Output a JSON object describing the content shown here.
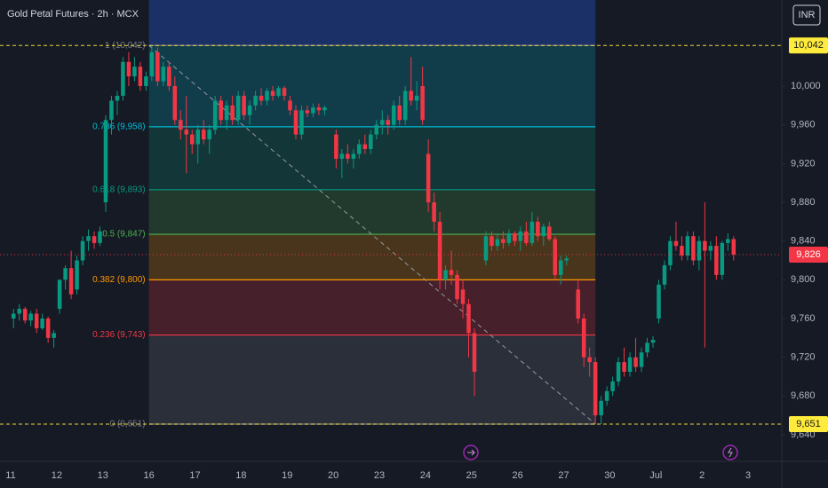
{
  "chart_data": {
    "type": "candlestick",
    "title": "Gold Petal Futures · 2h · MCX",
    "currency_button": "INR",
    "categories": [
      "11",
      "12",
      "13",
      "16",
      "17",
      "18",
      "19",
      "20",
      "23",
      "24",
      "25",
      "26",
      "27",
      "30",
      "Jul",
      "2",
      "3"
    ],
    "up_color": "#089981",
    "down_color": "#f23645",
    "ohlc": [
      [
        [
          9760,
          9770,
          9750,
          9765
        ],
        [
          9765,
          9775,
          9758,
          9770
        ],
        [
          9770,
          9772,
          9755,
          9758
        ],
        [
          9758,
          9768,
          9752,
          9765
        ],
        [
          9765,
          9770,
          9745,
          9750
        ],
        [
          9750,
          9765,
          9748,
          9760
        ],
        [
          9760,
          9762,
          9735,
          9740
        ],
        [
          9740,
          9748,
          9730,
          9745
        ]
      ],
      [
        [
          9770,
          9800,
          9765,
          9800
        ],
        [
          9800,
          9815,
          9790,
          9812
        ],
        [
          9812,
          9830,
          9780,
          9785
        ],
        [
          9790,
          9825,
          9785,
          9820
        ],
        [
          9820,
          9845,
          9815,
          9840
        ],
        [
          9840,
          9852,
          9830,
          9845
        ],
        [
          9845,
          9850,
          9832,
          9838
        ],
        [
          9838,
          9855,
          9835,
          9850
        ]
      ],
      [
        [
          9880,
          9970,
          9870,
          9965
        ],
        [
          9965,
          9990,
          9950,
          9985
        ],
        [
          9985,
          9995,
          9970,
          9990
        ],
        [
          9990,
          10030,
          9985,
          10025
        ],
        [
          10025,
          10035,
          10000,
          10010
        ],
        [
          10010,
          10030,
          10005,
          10020
        ],
        [
          10020,
          10025,
          9995,
          10000
        ],
        [
          10000,
          10015,
          9995,
          10010
        ]
      ],
      [
        [
          10010,
          10042,
          10005,
          10035
        ],
        [
          10035,
          10040,
          10000,
          10005
        ],
        [
          10005,
          10025,
          10000,
          10020
        ],
        [
          10020,
          10025,
          9995,
          10000
        ],
        [
          10000,
          10010,
          9960,
          9965
        ],
        [
          9965,
          9975,
          9945,
          9955
        ],
        [
          9955,
          9990,
          9910,
          9950
        ],
        [
          9950,
          9955,
          9930,
          9940
        ]
      ],
      [
        [
          9940,
          9960,
          9920,
          9955
        ],
        [
          9955,
          9965,
          9940,
          9945
        ],
        [
          9945,
          9960,
          9930,
          9955
        ],
        [
          9955,
          9990,
          9950,
          9985
        ],
        [
          9985,
          9990,
          9960,
          9965
        ],
        [
          9965,
          9985,
          9955,
          9980
        ],
        [
          9980,
          9990,
          9960,
          9965
        ],
        [
          9965,
          9995,
          9960,
          9990
        ]
      ],
      [
        [
          9990,
          9995,
          9965,
          9970
        ],
        [
          9970,
          9985,
          9960,
          9980
        ],
        [
          9980,
          9995,
          9975,
          9990
        ],
        [
          9990,
          9998,
          9980,
          9985
        ],
        [
          9985,
          9998,
          9980,
          9995
        ],
        [
          9995,
          10000,
          9985,
          9990
        ],
        [
          9990,
          10000,
          9988,
          9998
        ],
        [
          9998,
          10000,
          9985,
          9990
        ]
      ],
      [
        [
          9985,
          9990,
          9970,
          9975
        ],
        [
          9975,
          9980,
          9945,
          9950
        ],
        [
          9950,
          9980,
          9945,
          9975
        ],
        [
          9975,
          9980,
          9968,
          9972
        ],
        [
          9972,
          9982,
          9968,
          9978
        ],
        [
          9978,
          9982,
          9970,
          9975
        ],
        [
          9975,
          9980,
          9970,
          9978
        ],
        null
      ],
      [
        [
          9950,
          9955,
          9915,
          9925
        ],
        [
          9925,
          9935,
          9905,
          9930
        ],
        [
          9930,
          9940,
          9920,
          9925
        ],
        [
          9925,
          9935,
          9915,
          9930
        ],
        [
          9930,
          9945,
          9925,
          9940
        ],
        [
          9940,
          9950,
          9930,
          9935
        ],
        [
          9935,
          9955,
          9930,
          9950
        ],
        [
          9950,
          9965,
          9945,
          9960
        ]
      ],
      [
        [
          9960,
          9975,
          9950,
          9965
        ],
        [
          9965,
          9970,
          9950,
          9960
        ],
        [
          9960,
          9985,
          9955,
          9980
        ],
        [
          9980,
          9990,
          9960,
          9965
        ],
        [
          9965,
          10000,
          9960,
          9995
        ],
        [
          9995,
          10030,
          9980,
          9985
        ],
        [
          9985,
          10005,
          9975,
          9990
        ],
        [
          10000,
          10020,
          9960,
          9965
        ]
      ],
      [
        [
          9930,
          9945,
          9870,
          9880
        ],
        [
          9880,
          9890,
          9850,
          9860
        ],
        [
          9860,
          9870,
          9790,
          9800
        ],
        [
          9800,
          9815,
          9790,
          9810
        ],
        [
          9810,
          9830,
          9795,
          9805
        ],
        [
          9805,
          9810,
          9775,
          9780
        ],
        [
          9790,
          9800,
          9760,
          9775
        ],
        [
          9775,
          9780,
          9720,
          9745
        ]
      ],
      [
        [
          9745,
          9750,
          9680,
          9705
        ],
        null,
        [
          9820,
          9850,
          9815,
          9845
        ],
        [
          9845,
          9850,
          9830,
          9835
        ],
        [
          9835,
          9848,
          9830,
          9842
        ],
        [
          9842,
          9850,
          9832,
          9838
        ],
        [
          9838,
          9852,
          9835,
          9848
        ],
        [
          9848,
          9850,
          9835,
          9840
        ]
      ],
      [
        [
          9840,
          9855,
          9830,
          9850
        ],
        [
          9850,
          9860,
          9835,
          9838
        ],
        [
          9838,
          9870,
          9835,
          9860
        ],
        [
          9860,
          9865,
          9840,
          9845
        ],
        [
          9845,
          9858,
          9835,
          9855
        ],
        [
          9855,
          9860,
          9840,
          9842
        ],
        [
          9842,
          9845,
          9800,
          9805
        ],
        [
          9805,
          9825,
          9795,
          9820
        ]
      ],
      [
        [
          9820,
          9825,
          9815,
          9822
        ],
        null,
        [
          9790,
          9800,
          9755,
          9760
        ],
        [
          9760,
          9765,
          9710,
          9720
        ],
        [
          9720,
          9730,
          9700,
          9715
        ],
        [
          9715,
          9720,
          9651,
          9660
        ],
        [
          9660,
          9680,
          9651,
          9675
        ],
        [
          9675,
          9690,
          9670,
          9685
        ]
      ],
      [
        [
          9685,
          9700,
          9680,
          9695
        ],
        [
          9695,
          9720,
          9690,
          9715
        ],
        [
          9715,
          9730,
          9700,
          9705
        ],
        [
          9705,
          9725,
          9700,
          9720
        ],
        [
          9720,
          9740,
          9705,
          9710
        ],
        [
          9710,
          9730,
          9705,
          9725
        ],
        [
          9725,
          9740,
          9720,
          9735
        ],
        [
          9735,
          9742,
          9730,
          9738
        ]
      ],
      [
        [
          9760,
          9800,
          9755,
          9795
        ],
        [
          9795,
          9820,
          9790,
          9815
        ],
        [
          9815,
          9845,
          9810,
          9840
        ],
        [
          9840,
          9860,
          9830,
          9835
        ],
        [
          9835,
          9845,
          9820,
          9825
        ],
        [
          9825,
          9850,
          9820,
          9845
        ],
        [
          9845,
          9850,
          9815,
          9820
        ],
        [
          9820,
          9845,
          9810,
          9840
        ]
      ],
      [
        [
          9840,
          9880,
          9730,
          9830
        ],
        [
          9830,
          9840,
          9820,
          9835
        ],
        [
          9835,
          9845,
          9800,
          9805
        ],
        [
          9805,
          9840,
          9800,
          9838
        ],
        [
          9838,
          9848,
          9830,
          9842
        ],
        [
          9842,
          9845,
          9820,
          9826
        ],
        null,
        null
      ],
      []
    ],
    "ylim": [
      9612.5,
      10088.9
    ],
    "yticks": [
      {
        "value": 10000,
        "label": "10,000"
      },
      {
        "value": 9960,
        "label": "9,960"
      },
      {
        "value": 9920,
        "label": "9,920"
      },
      {
        "value": 9880,
        "label": "9,880"
      },
      {
        "value": 9840,
        "label": "9,840"
      },
      {
        "value": 9800,
        "label": "9,800"
      },
      {
        "value": 9760,
        "label": "9,760"
      },
      {
        "value": 9720,
        "label": "9,720"
      },
      {
        "value": 9680,
        "label": "9,680"
      },
      {
        "value": 9640,
        "label": "9,640"
      }
    ],
    "fib_levels": [
      {
        "ratio": 1,
        "value": 10042,
        "label": "1 (10,042)",
        "color": "#787b86"
      },
      {
        "ratio": 0.786,
        "value": 9958,
        "label": "0.786 (9,958)",
        "color": "#00bcd4"
      },
      {
        "ratio": 0.618,
        "value": 9893,
        "label": "0.618 (9,893)",
        "color": "#089981"
      },
      {
        "ratio": 0.5,
        "value": 9847,
        "label": "0.5 (9,847)",
        "color": "#4caf50"
      },
      {
        "ratio": 0.382,
        "value": 9800,
        "label": "0.382 (9,800)",
        "color": "#ff9800"
      },
      {
        "ratio": 0.236,
        "value": 9743,
        "label": "0.236 (9,743)",
        "color": "#f23645"
      },
      {
        "ratio": 0,
        "value": 9651,
        "label": "0 (9,651)",
        "color": "#787b86"
      }
    ],
    "price_tags": [
      {
        "value": 10042,
        "label": "10,042",
        "color": "#ffeb3b"
      },
      {
        "value": 9826,
        "label": "9,826",
        "color": "#f23645"
      },
      {
        "value": 9651,
        "label": "9,651",
        "color": "#ffeb3b"
      }
    ]
  }
}
